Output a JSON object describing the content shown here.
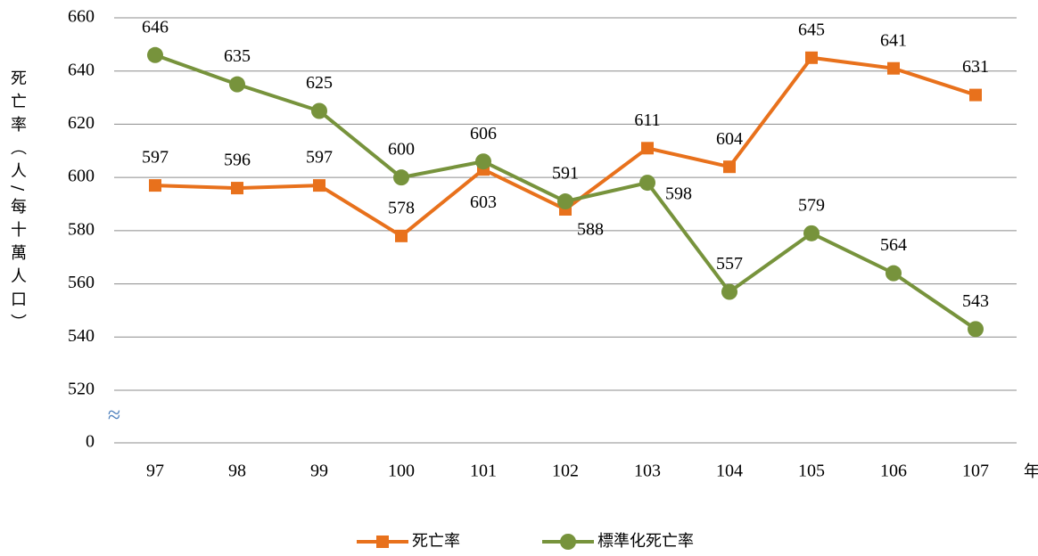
{
  "chart_data": {
    "type": "line",
    "y_label": "死亡率（人/每十萬人口）",
    "x_unit": "年",
    "categories": [
      "97",
      "98",
      "99",
      "100",
      "101",
      "102",
      "103",
      "104",
      "105",
      "106",
      "107"
    ],
    "series": [
      {
        "name": "死亡率",
        "color": "#e8711c",
        "marker": "square",
        "values": [
          597,
          596,
          597,
          578,
          603,
          588,
          611,
          604,
          645,
          641,
          631
        ]
      },
      {
        "name": "標準化死亡率",
        "color": "#77933c",
        "marker": "circle",
        "values": [
          646,
          635,
          625,
          600,
          606,
          591,
          598,
          557,
          579,
          564,
          543
        ]
      }
    ],
    "ylim": [
      0,
      660
    ],
    "axis_break": [
      0,
      520
    ],
    "yticks": [
      0,
      520,
      540,
      560,
      580,
      600,
      620,
      640,
      660
    ],
    "grid": true,
    "legend": "bottom"
  }
}
